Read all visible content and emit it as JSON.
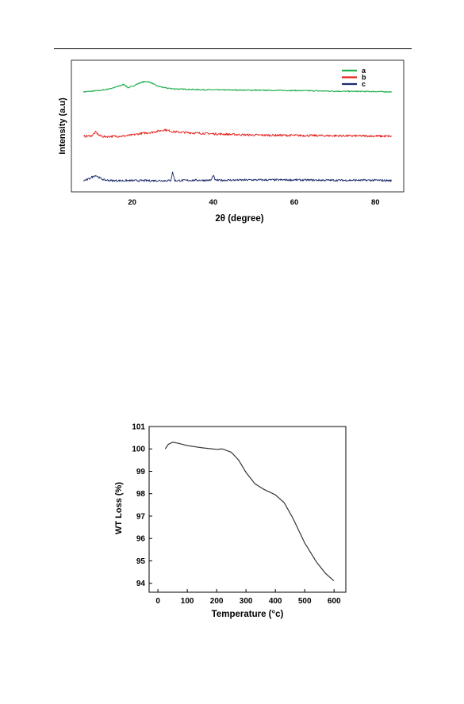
{
  "chart_data": [
    {
      "type": "line",
      "xlabel": "2θ (degree)",
      "ylabel": "Intensity (a.u)",
      "xlim": [
        5,
        87
      ],
      "x_ticks": [
        "20",
        "40",
        "60",
        "80"
      ],
      "y_ticks": [],
      "legend": {
        "placement": "top-right",
        "entries": [
          "a",
          "b",
          "c"
        ]
      },
      "grid": false,
      "series": [
        {
          "name": "a",
          "color": "#1faf4b",
          "x": [
            8,
            12,
            14,
            16,
            18,
            19,
            20,
            22,
            23,
            24,
            25,
            26,
            28,
            30,
            35,
            40,
            50,
            60,
            70,
            80,
            84
          ],
          "y": [
            0.7,
            0.74,
            0.78,
            0.84,
            0.92,
            0.82,
            0.86,
            0.97,
            1.0,
            1.0,
            0.95,
            0.88,
            0.82,
            0.79,
            0.77,
            0.76,
            0.75,
            0.74,
            0.72,
            0.71,
            0.7
          ],
          "noise": 0.015
        },
        {
          "name": "b",
          "color": "#e52320",
          "x": [
            8,
            10,
            11,
            12,
            13,
            15,
            18,
            20,
            22,
            25,
            27,
            28,
            30,
            32,
            35,
            40,
            45,
            50,
            60,
            70,
            80,
            84
          ],
          "y": [
            0.45,
            0.47,
            0.58,
            0.47,
            0.44,
            0.45,
            0.46,
            0.49,
            0.54,
            0.58,
            0.63,
            0.66,
            0.6,
            0.58,
            0.56,
            0.53,
            0.51,
            0.49,
            0.48,
            0.47,
            0.46,
            0.45
          ],
          "noise": 0.035
        },
        {
          "name": "c",
          "color": "#1c2a6b",
          "x": [
            8,
            9,
            10,
            11,
            12,
            13,
            15,
            20,
            25,
            29.5,
            30,
            30.5,
            35,
            39.5,
            40,
            40.5,
            50,
            60,
            70,
            80,
            84
          ],
          "y": [
            0.1,
            0.13,
            0.2,
            0.26,
            0.18,
            0.12,
            0.1,
            0.1,
            0.1,
            0.1,
            0.36,
            0.1,
            0.11,
            0.11,
            0.26,
            0.11,
            0.12,
            0.12,
            0.11,
            0.11,
            0.1
          ],
          "noise": 0.03
        }
      ]
    },
    {
      "type": "line",
      "xlabel": "Temperature (°c)",
      "ylabel": "WT Loss (%)",
      "xlim": [
        -30,
        640
      ],
      "ylim": [
        93.6,
        101
      ],
      "x_ticks": [
        0,
        100,
        200,
        300,
        400,
        500,
        600
      ],
      "y_ticks": [
        94,
        95,
        96,
        97,
        98,
        99,
        100,
        101
      ],
      "grid": false,
      "series": [
        {
          "color": "#333333",
          "x": [
            25,
            35,
            50,
            70,
            100,
            150,
            200,
            220,
            250,
            275,
            300,
            330,
            360,
            400,
            430,
            460,
            500,
            540,
            570,
            600
          ],
          "y": [
            100.0,
            100.2,
            100.3,
            100.25,
            100.15,
            100.05,
            99.98,
            100.0,
            99.85,
            99.5,
            98.95,
            98.45,
            98.2,
            97.95,
            97.6,
            96.9,
            95.8,
            94.95,
            94.45,
            94.1
          ]
        }
      ]
    }
  ]
}
